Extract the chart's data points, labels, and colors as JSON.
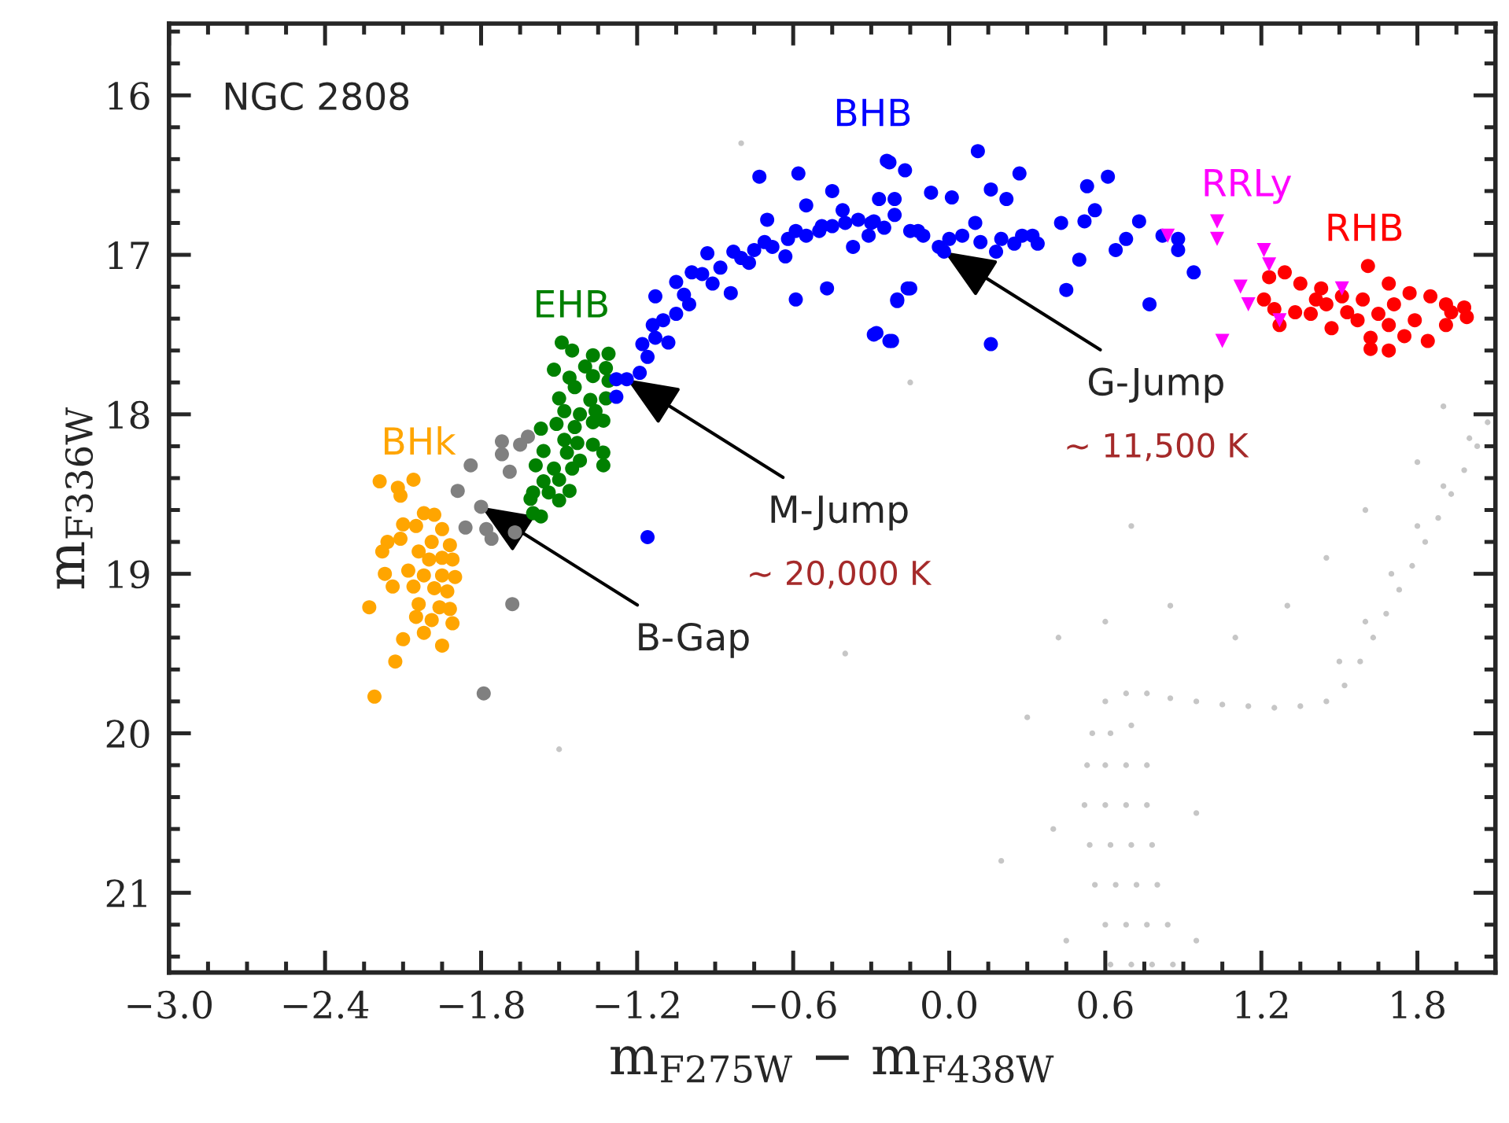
{
  "chart_data": {
    "type": "scatter",
    "xlabel": "m$_{F275W}$ − m$_{F438W}$",
    "ylabel": "m$_{F336W}$",
    "xlim": [
      -3.0,
      2.1
    ],
    "ylim": [
      21.5,
      15.55
    ],
    "xticks": [
      {
        "value": -3.0,
        "label": "−3.0"
      },
      {
        "value": -2.4,
        "label": "−2.4"
      },
      {
        "value": -1.8,
        "label": "−1.8"
      },
      {
        "value": -1.2,
        "label": "−1.2"
      },
      {
        "value": -0.6,
        "label": "−0.6"
      },
      {
        "value": 0.0,
        "label": "0.0"
      },
      0.6,
      1.2,
      1.8
    ],
    "yticks": [
      16,
      17,
      18,
      19,
      20,
      21
    ],
    "series": [
      {
        "color": "#a0a0a0",
        "marker": "point",
        "x": [
          0.62,
          0.7,
          0.78,
          0.86,
          0.6,
          0.68,
          0.76,
          0.84,
          0.56,
          0.64,
          0.72,
          0.8,
          0.54,
          0.62,
          0.7,
          0.78,
          0.52,
          0.6,
          0.68,
          0.76,
          0.53,
          0.6,
          0.68,
          0.76,
          0.55,
          0.62,
          0.7,
          0.6,
          0.68,
          0.76,
          0.85,
          0.95,
          1.05,
          1.15,
          1.25,
          1.35,
          1.45,
          1.52,
          1.58,
          1.63,
          1.68,
          1.73,
          1.78,
          1.83,
          1.88,
          1.93,
          1.98,
          2.03,
          2.07,
          1.5,
          1.6,
          1.7,
          1.8,
          1.9,
          2.0,
          0.45,
          0.95,
          0.4,
          0.95,
          0.42,
          0.6,
          0.85,
          1.1,
          1.3,
          1.45,
          1.6,
          1.8,
          0.7,
          0.3,
          -0.4,
          -1.5,
          -0.8,
          -0.15,
          1.9,
          0.2
        ],
        "values": [
          21.45,
          21.45,
          21.45,
          21.45,
          21.2,
          21.2,
          21.2,
          21.2,
          20.95,
          20.95,
          20.95,
          20.95,
          20.7,
          20.7,
          20.7,
          20.7,
          20.45,
          20.45,
          20.45,
          20.45,
          20.2,
          20.2,
          20.2,
          20.2,
          20.0,
          20.0,
          19.95,
          19.8,
          19.75,
          19.75,
          19.78,
          19.8,
          19.82,
          19.83,
          19.84,
          19.83,
          19.8,
          19.7,
          19.55,
          19.4,
          19.25,
          19.1,
          18.95,
          18.8,
          18.65,
          18.5,
          18.35,
          18.2,
          18.05,
          19.55,
          19.3,
          19.0,
          18.7,
          18.45,
          18.15,
          21.3,
          21.3,
          20.6,
          20.5,
          19.4,
          19.3,
          19.2,
          19.4,
          19.2,
          18.9,
          18.6,
          18.3,
          18.7,
          19.9,
          19.5,
          20.1,
          16.3,
          17.8,
          17.95,
          20.8
        ]
      },
      {
        "name": "BHk",
        "color": "#ffa500",
        "marker": "circle",
        "x": [
          -2.19,
          -2.12,
          -2.06,
          -2.11,
          -2.02,
          -1.98,
          -2.05,
          -2.1,
          -1.95,
          -2.16,
          -2.11,
          -1.99,
          -1.92,
          -2.18,
          -2.04,
          -1.95,
          -2.0,
          -1.91,
          -2.17,
          -2.08,
          -2.02,
          -1.95,
          -1.9,
          -2.14,
          -2.06,
          -1.98,
          -1.93,
          -2.23,
          -2.04,
          -1.96,
          -1.92,
          -2.05,
          -1.99,
          -1.91,
          -2.1,
          -2.02,
          -1.95,
          -2.13,
          -2.21
        ],
        "values": [
          18.42,
          18.46,
          18.41,
          18.51,
          18.62,
          18.63,
          18.7,
          18.69,
          18.72,
          18.8,
          18.78,
          18.8,
          18.82,
          18.86,
          18.86,
          18.9,
          18.91,
          18.91,
          19.0,
          18.98,
          19.01,
          19.01,
          19.02,
          19.08,
          19.08,
          19.09,
          19.11,
          19.21,
          19.19,
          19.21,
          19.22,
          19.27,
          19.29,
          19.31,
          19.41,
          19.37,
          19.45,
          19.55,
          19.77
        ]
      },
      {
        "color": "#808080",
        "marker": "circle",
        "x": [
          -1.72,
          -1.72,
          -1.65,
          -1.62,
          -1.84,
          -1.69,
          -1.89,
          -1.8,
          -1.86,
          -1.78,
          -1.76,
          -1.67,
          -1.68,
          -1.79
        ],
        "values": [
          18.17,
          18.25,
          18.19,
          18.14,
          18.32,
          18.36,
          18.48,
          18.58,
          18.71,
          18.72,
          18.78,
          18.74,
          19.19,
          19.75
        ]
      },
      {
        "name": "EHB",
        "color": "#008000",
        "marker": "circle",
        "x": [
          -1.49,
          -1.45,
          -1.37,
          -1.31,
          -1.52,
          -1.4,
          -1.32,
          -1.46,
          -1.37,
          -1.31,
          -1.44,
          -1.5,
          -1.38,
          -1.32,
          -1.48,
          -1.42,
          -1.36,
          -1.51,
          -1.44,
          -1.37,
          -1.33,
          -1.57,
          -1.48,
          -1.43,
          -1.37,
          -1.56,
          -1.47,
          -1.33,
          -1.42,
          -1.59,
          -1.52,
          -1.45,
          -1.33,
          -1.56,
          -1.5,
          -1.6,
          -1.54,
          -1.46,
          -1.61,
          -1.5,
          -1.6,
          -1.57
        ],
        "values": [
          17.55,
          17.6,
          17.63,
          17.62,
          17.72,
          17.7,
          17.71,
          17.77,
          17.76,
          17.79,
          17.83,
          17.9,
          17.91,
          17.9,
          17.98,
          18.0,
          17.98,
          18.06,
          18.08,
          18.05,
          18.04,
          18.09,
          18.16,
          18.18,
          18.19,
          18.23,
          18.24,
          18.24,
          18.29,
          18.32,
          18.34,
          18.34,
          18.32,
          18.42,
          18.41,
          18.49,
          18.49,
          18.48,
          18.53,
          18.54,
          18.62,
          18.64
        ]
      },
      {
        "name": "BHB",
        "color": "#0000ff",
        "marker": "circle",
        "x": [
          -1.28,
          -1.24,
          -1.28,
          -1.19,
          -1.16,
          -1.18,
          -1.13,
          -1.08,
          -1.14,
          -1.1,
          -1.13,
          -1.05,
          -1.05,
          -1.0,
          -0.99,
          -0.93,
          -0.91,
          -0.84,
          -0.83,
          -0.77,
          -0.71,
          -0.7,
          -0.63,
          -0.59,
          -0.55,
          -0.73,
          -0.58,
          -0.45,
          -0.49,
          -0.41,
          -0.37,
          -0.47,
          -0.59,
          -0.31,
          -0.27,
          -0.23,
          -0.17,
          -0.21,
          -0.12,
          -0.07,
          -0.04,
          -0.29,
          -0.23,
          -0.2,
          -0.16,
          -1.16,
          -0.29,
          -0.24,
          -0.21,
          0.01,
          -0.02,
          0.1,
          0.11,
          0.16,
          0.22,
          0.27,
          0.18,
          0.28,
          0.34,
          0.43,
          0.45,
          0.52,
          0.53,
          0.61,
          0.56,
          0.64,
          0.73,
          0.77,
          0.82,
          0.88,
          0.94,
          0.88,
          -0.2,
          -0.15,
          -0.28,
          -0.22,
          0.16,
          0.68,
          0.5,
          -1.02,
          -0.95,
          -0.88,
          -0.8,
          -0.75,
          -0.68,
          -0.62,
          -0.55,
          -0.5,
          -0.45,
          -0.4,
          -0.35,
          -0.3,
          -0.25,
          -0.15,
          -0.1,
          0.0,
          0.05,
          0.12,
          0.2,
          0.25,
          0.32
        ],
        "values": [
          17.78,
          17.78,
          17.89,
          17.74,
          17.64,
          17.56,
          17.52,
          17.55,
          17.44,
          17.41,
          17.26,
          17.17,
          17.37,
          17.31,
          17.11,
          16.99,
          17.18,
          17.24,
          16.98,
          17.05,
          16.92,
          16.78,
          17.01,
          16.85,
          16.69,
          16.51,
          16.49,
          16.6,
          16.82,
          16.72,
          16.95,
          17.21,
          17.28,
          16.88,
          16.65,
          16.42,
          16.47,
          16.75,
          16.85,
          16.61,
          16.95,
          17.5,
          17.54,
          17.29,
          17.21,
          18.77,
          16.79,
          16.41,
          16.65,
          16.64,
          16.98,
          16.8,
          16.35,
          16.59,
          16.65,
          16.49,
          16.98,
          16.88,
          16.93,
          16.8,
          17.22,
          16.79,
          16.57,
          16.51,
          16.72,
          16.97,
          16.79,
          17.31,
          16.88,
          16.97,
          17.11,
          16.9,
          17.28,
          17.21,
          17.49,
          17.54,
          17.56,
          16.9,
          17.03,
          17.25,
          17.12,
          17.08,
          17.02,
          16.97,
          16.95,
          16.9,
          16.88,
          16.85,
          16.82,
          16.8,
          16.78,
          16.8,
          16.83,
          16.85,
          16.88,
          16.9,
          16.88,
          16.92,
          16.9,
          16.93,
          16.88
        ]
      },
      {
        "name": "RRLy",
        "color": "#ff00ff",
        "marker": "triangle",
        "x": [
          0.84,
          1.03,
          1.03,
          1.21,
          1.23,
          1.12,
          1.15,
          1.27,
          1.05,
          1.51
        ],
        "values": [
          16.88,
          16.79,
          16.9,
          16.97,
          17.06,
          17.2,
          17.31,
          17.41,
          17.54,
          17.21
        ]
      },
      {
        "name": "RHB",
        "color": "#ff0000",
        "marker": "circle",
        "x": [
          1.61,
          1.23,
          1.29,
          1.35,
          1.43,
          1.51,
          1.59,
          1.69,
          1.77,
          1.85,
          1.91,
          1.98,
          1.99,
          1.91,
          1.84,
          1.75,
          1.69,
          1.62,
          1.62,
          1.47,
          1.39,
          1.33,
          1.25,
          1.27,
          1.21,
          1.45,
          1.53,
          1.65,
          1.71,
          1.79,
          1.93,
          1.57,
          1.41,
          1.69
        ],
        "values": [
          17.07,
          17.14,
          17.11,
          17.18,
          17.21,
          17.26,
          17.28,
          17.18,
          17.24,
          17.26,
          17.31,
          17.33,
          17.39,
          17.44,
          17.54,
          17.51,
          17.6,
          17.59,
          17.52,
          17.46,
          17.37,
          17.36,
          17.34,
          17.44,
          17.28,
          17.31,
          17.36,
          17.37,
          17.31,
          17.41,
          17.36,
          17.41,
          17.28,
          17.44
        ]
      }
    ],
    "annotations": [
      "NGC 2808",
      {
        "text": "B-Gap",
        "x": -1.8,
        "y": 18.58
      },
      {
        "text": "M-Jump",
        "x": -1.24,
        "y": 17.78
      },
      "∼ 20,000 K",
      {
        "text": "G-Jump",
        "x": -0.02,
        "y": 16.98
      },
      "∼ 11,500 K"
    ]
  }
}
